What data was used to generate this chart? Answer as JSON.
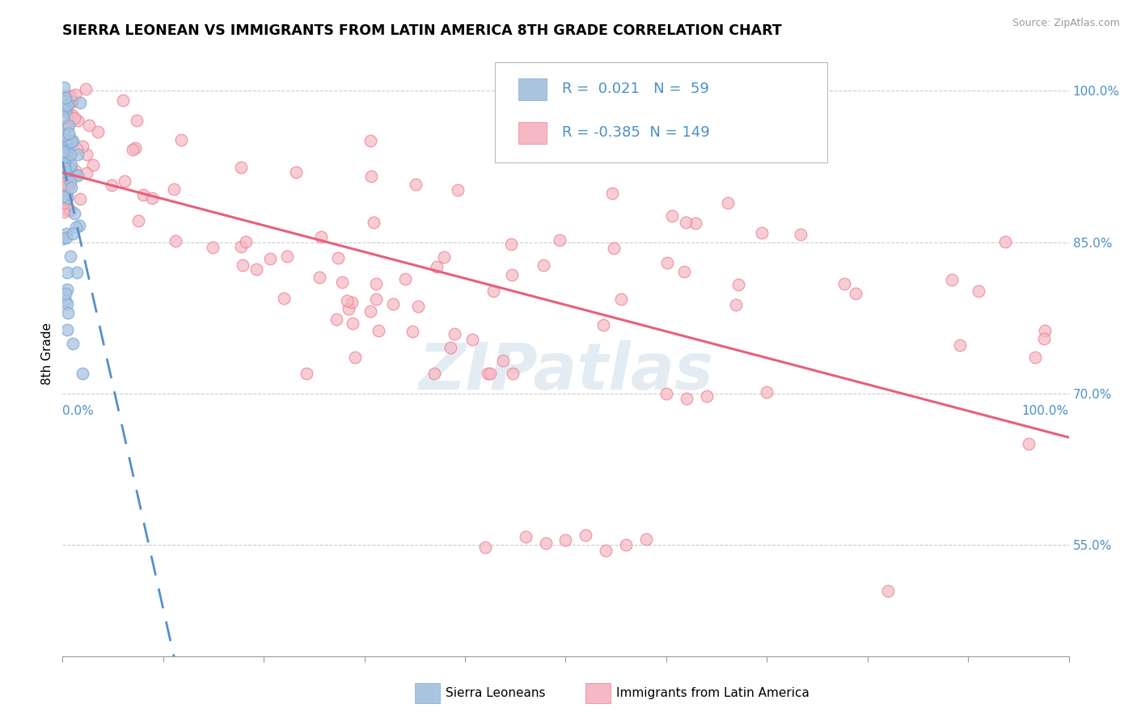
{
  "title": "SIERRA LEONEAN VS IMMIGRANTS FROM LATIN AMERICA 8TH GRADE CORRELATION CHART",
  "source": "Source: ZipAtlas.com",
  "ylabel": "8th Grade",
  "right_yticks": [
    55.0,
    70.0,
    85.0,
    100.0
  ],
  "legend_blue_label": "Sierra Leoneans",
  "legend_pink_label": "Immigrants from Latin America",
  "legend_R_blue": "0.021",
  "legend_N_blue": "59",
  "legend_R_pink": "-0.385",
  "legend_N_pink": "149",
  "blue_scatter_color": "#aac4e0",
  "pink_scatter_color": "#f5b8c4",
  "blue_edge_color": "#7aacd6",
  "pink_edge_color": "#f08090",
  "trend_blue_color": "#5590c8",
  "trend_pink_color": "#e8607a",
  "grid_color": "#cccccc",
  "axis_color": "#999999",
  "label_color": "#4a90c4",
  "watermark_color": "#ccdde8",
  "watermark_text": "ZIPatlas",
  "source_color": "#999999",
  "ylim_min": 0.44,
  "ylim_max": 1.04,
  "xlim_min": 0.0,
  "xlim_max": 1.0
}
